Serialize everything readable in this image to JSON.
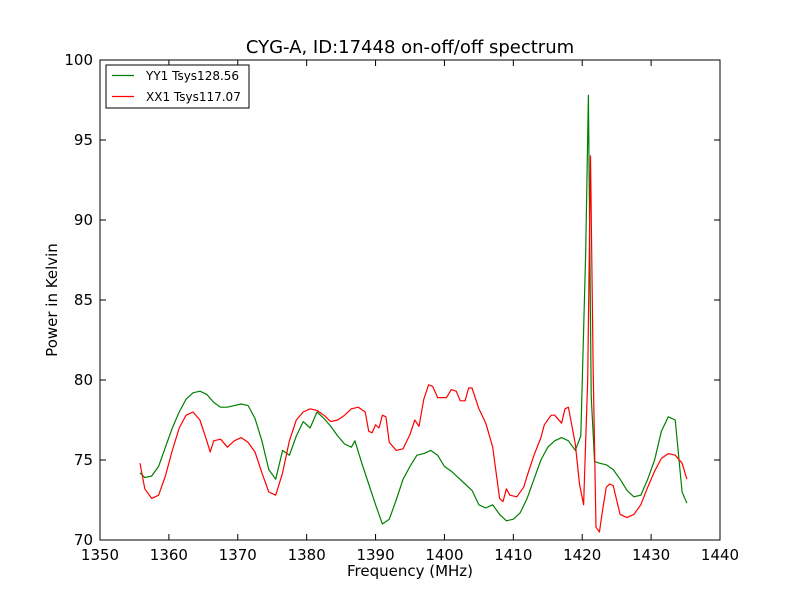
{
  "chart_data": {
    "type": "line",
    "title": "CYG-A, ID:17448 on-off/off spectrum",
    "xlabel": "Frequency (MHz)",
    "ylabel": "Power in Kelvin",
    "xlim": [
      1350,
      1440
    ],
    "ylim": [
      70,
      100
    ],
    "xticks": [
      "1350",
      "1360",
      "1370",
      "1380",
      "1390",
      "1400",
      "1410",
      "1420",
      "1430",
      "1440"
    ],
    "yticks": [
      "70",
      "75",
      "80",
      "85",
      "90",
      "95",
      "100"
    ],
    "grid": false,
    "legend_position": "top-left",
    "series": [
      {
        "name": "YY1 Tsys128.56",
        "color": "#008000",
        "x": [
          1355.8,
          1356.5,
          1357.5,
          1358.5,
          1359.5,
          1360.5,
          1361.5,
          1362.5,
          1363.5,
          1364.5,
          1365.5,
          1366.5,
          1367.5,
          1368.5,
          1369.5,
          1370.5,
          1371.5,
          1372.5,
          1373.5,
          1374.5,
          1375.5,
          1376.5,
          1377.5,
          1378.5,
          1379.5,
          1380.5,
          1381.5,
          1382.5,
          1383.5,
          1384.5,
          1385.5,
          1386.5,
          1387.0,
          1388.0,
          1389.0,
          1390.0,
          1391.0,
          1392.0,
          1393.0,
          1394.0,
          1395.0,
          1396.0,
          1397.0,
          1398.0,
          1399.0,
          1400.0,
          1401.0,
          1402.0,
          1403.0,
          1404.0,
          1405.0,
          1406.0,
          1407.0,
          1408.0,
          1409.0,
          1410.0,
          1411.0,
          1412.0,
          1413.0,
          1414.0,
          1415.0,
          1416.0,
          1417.0,
          1418.0,
          1419.0,
          1419.8,
          1420.5,
          1420.9,
          1421.3,
          1421.8,
          1422.5,
          1423.5,
          1424.5,
          1425.5,
          1426.5,
          1427.5,
          1428.5,
          1429.5,
          1430.5,
          1431.5,
          1432.5,
          1433.5,
          1434.5,
          1435.2
        ],
        "values": [
          74.2,
          73.9,
          74.0,
          74.6,
          75.8,
          77.0,
          78.0,
          78.8,
          79.2,
          79.3,
          79.1,
          78.6,
          78.3,
          78.3,
          78.4,
          78.5,
          78.4,
          77.6,
          76.2,
          74.4,
          73.8,
          75.6,
          75.3,
          76.5,
          77.4,
          77.0,
          78.0,
          77.6,
          77.1,
          76.5,
          76.0,
          75.8,
          76.2,
          74.8,
          73.5,
          72.2,
          71.0,
          71.3,
          72.5,
          73.8,
          74.6,
          75.3,
          75.4,
          75.6,
          75.3,
          74.6,
          74.3,
          73.9,
          73.5,
          73.1,
          72.2,
          72.0,
          72.2,
          71.6,
          71.2,
          71.3,
          71.7,
          72.6,
          73.8,
          75.0,
          75.8,
          76.2,
          76.4,
          76.2,
          75.6,
          76.5,
          88.0,
          97.8,
          79.0,
          74.9,
          74.8,
          74.7,
          74.4,
          73.8,
          73.1,
          72.7,
          72.8,
          73.8,
          75.0,
          76.8,
          77.7,
          77.5,
          73.0,
          72.3
        ]
      },
      {
        "name": "XX1 Tsys117.07",
        "color": "#ff0000",
        "x": [
          1355.8,
          1356.5,
          1357.5,
          1358.5,
          1359.5,
          1360.5,
          1361.5,
          1362.5,
          1363.5,
          1364.5,
          1365.5,
          1366.0,
          1366.5,
          1367.5,
          1368.5,
          1369.5,
          1370.5,
          1371.5,
          1372.5,
          1373.5,
          1374.5,
          1375.5,
          1376.5,
          1377.5,
          1378.5,
          1379.5,
          1380.5,
          1381.5,
          1382.5,
          1383.5,
          1384.5,
          1385.5,
          1386.5,
          1387.5,
          1388.5,
          1389.0,
          1389.5,
          1390.0,
          1390.5,
          1391.0,
          1391.5,
          1392.0,
          1393.0,
          1394.0,
          1395.0,
          1395.7,
          1396.3,
          1397.0,
          1397.7,
          1398.3,
          1399.0,
          1399.7,
          1400.3,
          1401.0,
          1401.7,
          1402.3,
          1403.0,
          1403.5,
          1404.0,
          1405.0,
          1406.0,
          1407.0,
          1408.0,
          1408.5,
          1409.0,
          1409.5,
          1410.5,
          1411.5,
          1412.0,
          1413.0,
          1414.0,
          1414.5,
          1415.5,
          1416.0,
          1417.0,
          1417.5,
          1418.0,
          1419.0,
          1419.6,
          1420.2,
          1420.8,
          1421.2,
          1421.6,
          1422.0,
          1422.5,
          1423.0,
          1423.5,
          1424.0,
          1424.5,
          1425.5,
          1426.5,
          1427.5,
          1428.5,
          1429.5,
          1430.5,
          1431.5,
          1432.5,
          1433.5,
          1434.5,
          1435.2
        ],
        "values": [
          74.8,
          73.2,
          72.6,
          72.8,
          74.0,
          75.6,
          77.0,
          77.8,
          78.0,
          77.5,
          76.2,
          75.5,
          76.2,
          76.3,
          75.8,
          76.2,
          76.4,
          76.1,
          75.5,
          74.2,
          73.0,
          72.8,
          74.2,
          76.2,
          77.5,
          78.0,
          78.2,
          78.1,
          77.8,
          77.4,
          77.5,
          77.8,
          78.2,
          78.3,
          78.0,
          76.8,
          76.7,
          77.2,
          77.0,
          77.8,
          77.7,
          76.1,
          75.6,
          75.7,
          76.6,
          77.5,
          77.1,
          78.8,
          79.7,
          79.6,
          78.9,
          78.9,
          78.9,
          79.4,
          79.3,
          78.7,
          78.7,
          79.5,
          79.5,
          78.2,
          77.3,
          75.8,
          72.6,
          72.4,
          73.2,
          72.8,
          72.7,
          73.3,
          74.0,
          75.3,
          76.4,
          77.2,
          77.8,
          77.8,
          77.3,
          78.2,
          78.3,
          76.0,
          73.5,
          72.2,
          80.0,
          94.0,
          80.5,
          70.8,
          70.5,
          72.0,
          73.3,
          73.5,
          73.4,
          71.6,
          71.4,
          71.6,
          72.2,
          73.3,
          74.3,
          75.1,
          75.4,
          75.3,
          74.8,
          73.8
        ]
      }
    ]
  }
}
